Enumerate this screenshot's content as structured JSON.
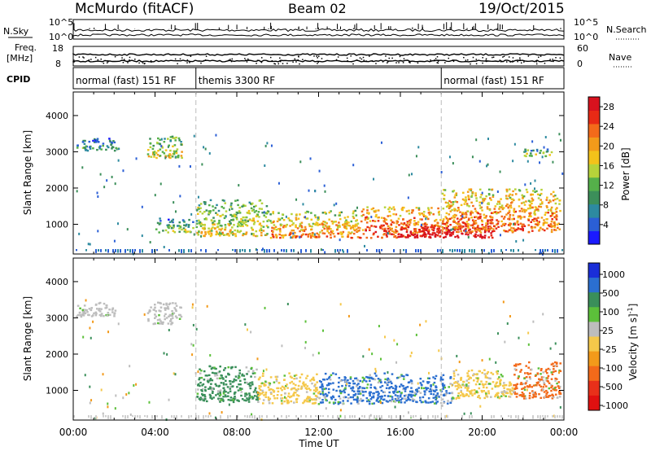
{
  "header": {
    "station": "McMurdo (fitACF)",
    "beam": "Beam 02",
    "date": "19/Oct/2015"
  },
  "noise_panel": {
    "left_label": "N.Sky",
    "right_label": "N.Search",
    "left_ticks": [
      "10^5",
      "10^0"
    ],
    "right_ticks": [
      "10^5",
      "10^0"
    ]
  },
  "freq_panel": {
    "left_label_line1": "Freq.",
    "left_label_line2": "[MHz]",
    "right_label": "Nave",
    "left_ticks": [
      "18",
      "8"
    ],
    "right_ticks": [
      "60",
      "0"
    ]
  },
  "cpid_panel": {
    "label": "CPID",
    "segments": [
      {
        "text": "normal (fast) 151 RF",
        "start_hour": 0,
        "end_hour": 6
      },
      {
        "text": "themis 3300 RF",
        "start_hour": 6,
        "end_hour": 18
      },
      {
        "text": "normal (fast) 151 RF",
        "start_hour": 18,
        "end_hour": 24
      }
    ]
  },
  "chart_data": [
    {
      "type": "heatmap",
      "title": "",
      "xlabel": "Time UT",
      "ylabel": "Slant Range [km]",
      "x_ticks": [
        "00:00",
        "04:00",
        "08:00",
        "12:00",
        "16:00",
        "20:00",
        "00:00"
      ],
      "xlim_hours": [
        0,
        24
      ],
      "y_ticks": [
        1000,
        2000,
        3000,
        4000
      ],
      "ylim": [
        180,
        4650
      ],
      "colorbar": {
        "label": "Power [dB]",
        "ticks": [
          4,
          8,
          12,
          16,
          20,
          24,
          28
        ],
        "range": [
          0,
          30
        ],
        "colors": [
          "#1a1aff",
          "#2b5fd6",
          "#2d8aa0",
          "#3c8f5a",
          "#55b04a",
          "#b6d33a",
          "#f3c21a",
          "#f39a1a",
          "#f36a1a",
          "#e82a15",
          "#d8121e"
        ]
      },
      "echo_regions": [
        {
          "t0": 0.1,
          "t1": 2.2,
          "r0": 3050,
          "r1": 3400,
          "value": 8
        },
        {
          "t0": 3.6,
          "t1": 5.3,
          "r0": 2850,
          "r1": 3450,
          "value": 14
        },
        {
          "t0": 4.0,
          "t1": 6.0,
          "r0": 800,
          "r1": 1200,
          "value": 10
        },
        {
          "t0": 6.0,
          "t1": 9.5,
          "r0": 700,
          "r1": 1700,
          "value": 14
        },
        {
          "t0": 9.5,
          "t1": 14.0,
          "r0": 650,
          "r1": 1400,
          "value": 18
        },
        {
          "t0": 14.0,
          "t1": 18.0,
          "r0": 650,
          "r1": 1500,
          "value": 22
        },
        {
          "t0": 16.0,
          "t1": 20.5,
          "r0": 650,
          "r1": 1100,
          "value": 28
        },
        {
          "t0": 18.0,
          "t1": 23.8,
          "r0": 800,
          "r1": 2000,
          "value": 20
        },
        {
          "t0": 22.0,
          "t1": 23.5,
          "r0": 2900,
          "r1": 3100,
          "value": 12
        }
      ]
    },
    {
      "type": "heatmap",
      "title": "",
      "xlabel": "Time UT",
      "ylabel": "Slant Range [km]",
      "x_ticks": [
        "00:00",
        "04:00",
        "08:00",
        "12:00",
        "16:00",
        "20:00",
        "00:00"
      ],
      "xlim_hours": [
        0,
        24
      ],
      "y_ticks": [
        1000,
        2000,
        3000,
        4000
      ],
      "ylim": [
        180,
        4650
      ],
      "colorbar": {
        "label": "Velocity [m s^-1]",
        "tick_labels": [
          "1000",
          "500",
          "100",
          "25",
          "-25",
          "-100",
          "-500",
          "-1000"
        ],
        "colors": [
          "#1a2ed8",
          "#2b6fd0",
          "#3a8f5a",
          "#5cc03a",
          "#bdbdbd",
          "#f5c84a",
          "#f39a1a",
          "#f36a1a",
          "#e8301a",
          "#e01010"
        ]
      },
      "echo_regions": [
        {
          "t0": 0.1,
          "t1": 2.2,
          "r0": 3050,
          "r1": 3450,
          "value": "25"
        },
        {
          "t0": 3.6,
          "t1": 5.3,
          "r0": 2850,
          "r1": 3450,
          "value": "25"
        },
        {
          "t0": 6.0,
          "t1": 9.0,
          "r0": 700,
          "r1": 1700,
          "value": "100"
        },
        {
          "t0": 9.0,
          "t1": 12.0,
          "r0": 650,
          "r1": 1500,
          "value": "-100"
        },
        {
          "t0": 12.0,
          "t1": 18.5,
          "r0": 650,
          "r1": 1500,
          "value": "500"
        },
        {
          "t0": 18.5,
          "t1": 21.5,
          "r0": 800,
          "r1": 1600,
          "value": "-100"
        },
        {
          "t0": 21.5,
          "t1": 23.8,
          "r0": 800,
          "r1": 1800,
          "value": "-500"
        }
      ]
    }
  ]
}
